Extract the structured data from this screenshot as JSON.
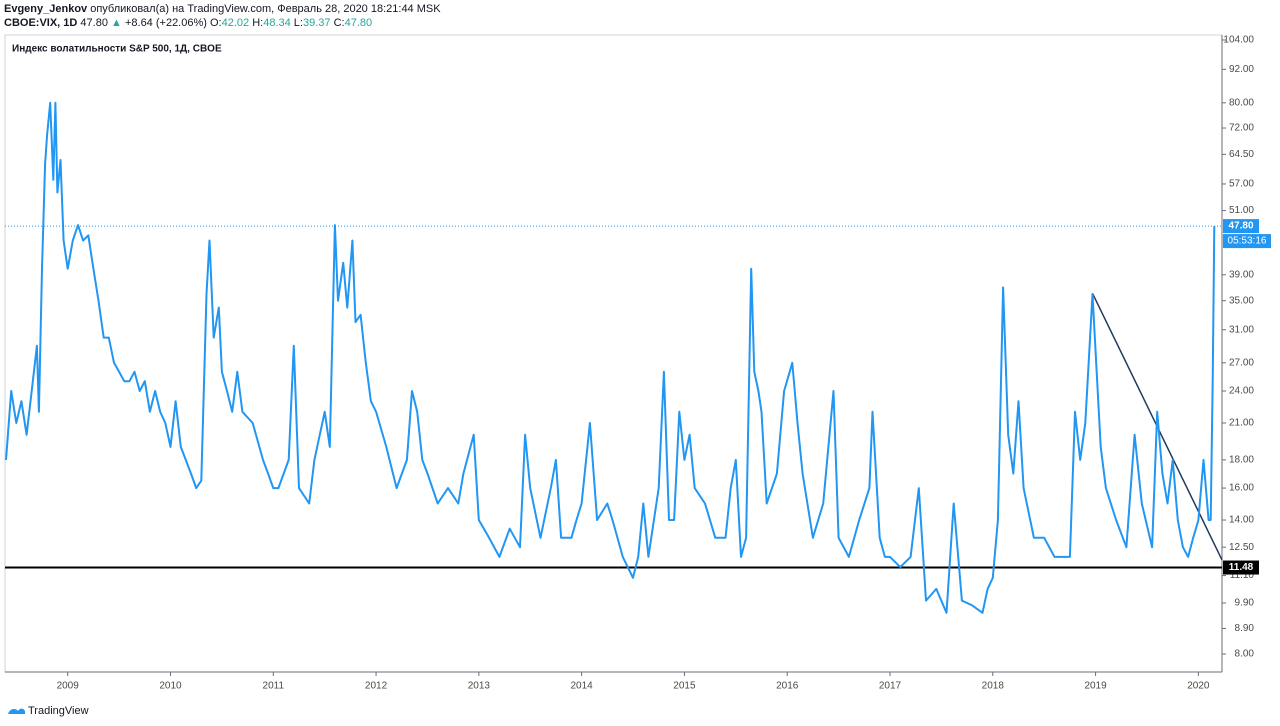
{
  "header": {
    "author": "Evgeny_Jenkov",
    "published": "опубликовал(а) на TradingView.com, Февраль 28, 2020 18:21:44 MSK",
    "symbol": "CBOE:VIX, 1D",
    "last": "47.80",
    "arrow": "▲",
    "change": "+8.64 (+22.06%)",
    "o_label": "O:",
    "o": "42.02",
    "h_label": "H:",
    "h": "48.34",
    "l_label": "L:",
    "l": "39.37",
    "c_label": "C:",
    "c": "47.80"
  },
  "footer": {
    "brand": "TradingView"
  },
  "chart_data": {
    "type": "line",
    "title": "Индекс волатильности S&P 500, 1Д, CBOE",
    "color": "#2196f3",
    "log_scale": true,
    "grid": false,
    "x": [
      2008.4,
      2008.45,
      2008.5,
      2008.55,
      2008.6,
      2008.65,
      2008.7,
      2008.72,
      2008.75,
      2008.78,
      2008.8,
      2008.83,
      2008.86,
      2008.88,
      2008.9,
      2008.93,
      2008.96,
      2009.0,
      2009.05,
      2009.1,
      2009.15,
      2009.2,
      2009.25,
      2009.3,
      2009.35,
      2009.4,
      2009.45,
      2009.5,
      2009.55,
      2009.6,
      2009.65,
      2009.7,
      2009.75,
      2009.8,
      2009.85,
      2009.9,
      2009.95,
      2010.0,
      2010.05,
      2010.1,
      2010.2,
      2010.25,
      2010.3,
      2010.35,
      2010.38,
      2010.42,
      2010.47,
      2010.5,
      2010.55,
      2010.6,
      2010.65,
      2010.7,
      2010.8,
      2010.9,
      2010.95,
      2011.0,
      2011.05,
      2011.15,
      2011.2,
      2011.25,
      2011.35,
      2011.4,
      2011.5,
      2011.55,
      2011.6,
      2011.63,
      2011.68,
      2011.72,
      2011.77,
      2011.8,
      2011.85,
      2011.9,
      2011.95,
      2012.0,
      2012.1,
      2012.2,
      2012.3,
      2012.35,
      2012.4,
      2012.45,
      2012.5,
      2012.6,
      2012.7,
      2012.8,
      2012.85,
      2012.95,
      2013.0,
      2013.1,
      2013.2,
      2013.3,
      2013.4,
      2013.45,
      2013.5,
      2013.6,
      2013.7,
      2013.75,
      2013.8,
      2013.9,
      2013.95,
      2014.0,
      2014.08,
      2014.15,
      2014.25,
      2014.3,
      2014.4,
      2014.5,
      2014.55,
      2014.6,
      2014.65,
      2014.75,
      2014.8,
      2014.85,
      2014.9,
      2014.95,
      2015.0,
      2015.05,
      2015.1,
      2015.2,
      2015.3,
      2015.4,
      2015.45,
      2015.5,
      2015.55,
      2015.6,
      2015.65,
      2015.68,
      2015.72,
      2015.75,
      2015.8,
      2015.9,
      2015.97,
      2016.05,
      2016.1,
      2016.15,
      2016.25,
      2016.35,
      2016.45,
      2016.5,
      2016.6,
      2016.7,
      2016.8,
      2016.83,
      2016.9,
      2016.95,
      2017.0,
      2017.1,
      2017.2,
      2017.28,
      2017.35,
      2017.45,
      2017.55,
      2017.62,
      2017.7,
      2017.8,
      2017.9,
      2017.95,
      2018.0,
      2018.05,
      2018.1,
      2018.15,
      2018.2,
      2018.25,
      2018.3,
      2018.4,
      2018.5,
      2018.6,
      2018.7,
      2018.75,
      2018.8,
      2018.85,
      2018.9,
      2018.97,
      2019.05,
      2019.1,
      2019.2,
      2019.3,
      2019.38,
      2019.45,
      2019.55,
      2019.6,
      2019.65,
      2019.7,
      2019.75,
      2019.8,
      2019.85,
      2019.9,
      2019.95,
      2020.0,
      2020.05,
      2020.1,
      2020.12,
      2020.14,
      2020.155
    ],
    "values": [
      18,
      24,
      21,
      23,
      20,
      24,
      29,
      22,
      40,
      62,
      70,
      80,
      58,
      80,
      55,
      63,
      45,
      40,
      45,
      48,
      45,
      46,
      40,
      35,
      30,
      30,
      27,
      26,
      25,
      25,
      26,
      24,
      25,
      22,
      24,
      22,
      21,
      19,
      23,
      19,
      17,
      16,
      16.5,
      36,
      45,
      30,
      34,
      26,
      24,
      22,
      26,
      22,
      21,
      18,
      17,
      16,
      16,
      18,
      29,
      16,
      15,
      18,
      22,
      19,
      48,
      35,
      41,
      34,
      45,
      32,
      33,
      27,
      23,
      22,
      19,
      16,
      18,
      24,
      22,
      18,
      17,
      15,
      16,
      15,
      17,
      20,
      14,
      13,
      12,
      13.5,
      12.5,
      20,
      16,
      13,
      16,
      18,
      13,
      13,
      14,
      15,
      21,
      14,
      15,
      14,
      12,
      11,
      12,
      15,
      12,
      16,
      26,
      14,
      14,
      22,
      18,
      20,
      16,
      15,
      13,
      13,
      16,
      18,
      12,
      13,
      40,
      26,
      24,
      22,
      15,
      17,
      24,
      27,
      21,
      17,
      13,
      15,
      24,
      13,
      12,
      14,
      16,
      22,
      13,
      12,
      12,
      11.5,
      12,
      16,
      10,
      10.5,
      9.5,
      15,
      10,
      9.8,
      9.5,
      10.5,
      11,
      14,
      37,
      20,
      17,
      23,
      16,
      13,
      13,
      12,
      12,
      12,
      22,
      18,
      21,
      36,
      19,
      16,
      14,
      12.5,
      20,
      15,
      12.5,
      22,
      17,
      15,
      18,
      14,
      12.5,
      12,
      13,
      14,
      18,
      14,
      14,
      25,
      47.8
    ],
    "xlim": [
      2008.39,
      2020.23
    ],
    "xticks": [
      2009,
      2010,
      2011,
      2012,
      2013,
      2014,
      2015,
      2016,
      2017,
      2018,
      2019,
      2020
    ],
    "ylim": [
      7.42,
      106.2
    ],
    "yticks": [
      {
        "value": 104,
        "label": "104.00"
      },
      {
        "value": 92,
        "label": "92.00"
      },
      {
        "value": 80,
        "label": "80.00"
      },
      {
        "value": 72,
        "label": "72.00"
      },
      {
        "value": 64.5,
        "label": "64.50"
      },
      {
        "value": 57,
        "label": "57.00"
      },
      {
        "value": 51,
        "label": "51.00"
      },
      {
        "value": 39,
        "label": "39.00"
      },
      {
        "value": 35,
        "label": "35.00"
      },
      {
        "value": 31,
        "label": "31.00"
      },
      {
        "value": 27,
        "label": "27.00"
      },
      {
        "value": 24,
        "label": "24.00"
      },
      {
        "value": 21,
        "label": "21.00"
      },
      {
        "value": 18,
        "label": "18.00"
      },
      {
        "value": 16,
        "label": "16.00"
      },
      {
        "value": 14,
        "label": "14.00"
      },
      {
        "value": 12.5,
        "label": "12.50"
      },
      {
        "value": 11.1,
        "label": "11.10"
      },
      {
        "value": 9.9,
        "label": "9.90"
      },
      {
        "value": 8.9,
        "label": "8.90"
      },
      {
        "value": 8,
        "label": "8.00"
      }
    ],
    "last_price": {
      "value": 47.8,
      "label": "47.80",
      "color": "#2196f3"
    },
    "countdown": "05:53:16",
    "hline": {
      "value": 11.48,
      "color": "#000000"
    },
    "trendline": {
      "x": [
        2018.97,
        2020.23
      ],
      "y": [
        36.1,
        11.85
      ],
      "color": "#1e3a5f"
    }
  }
}
